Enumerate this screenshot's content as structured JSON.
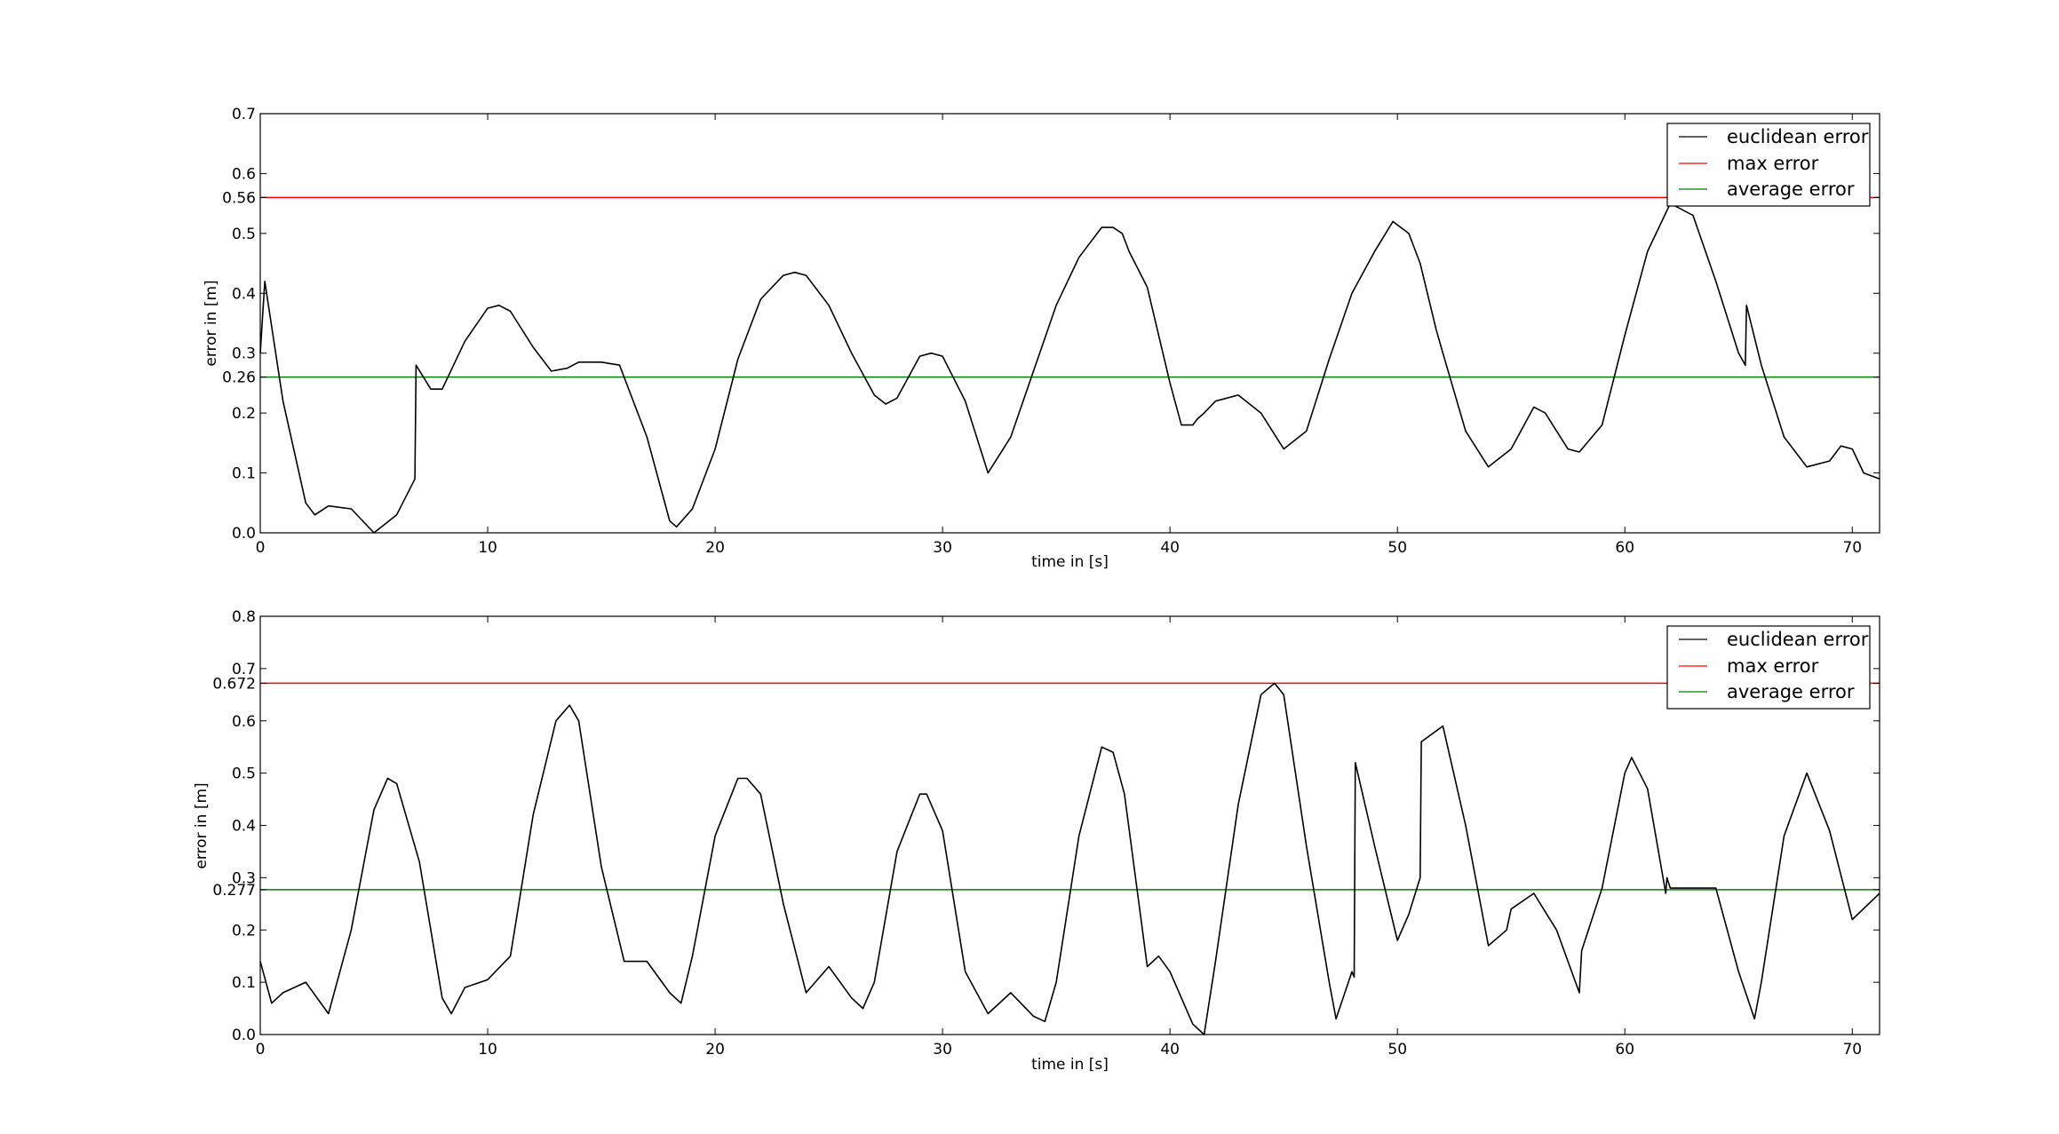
{
  "chart_data": [
    {
      "type": "line",
      "xlabel": "time in [s]",
      "ylabel": "error in [m]",
      "xlim": [
        0,
        71.2
      ],
      "ylim": [
        0,
        0.7
      ],
      "xticks": [
        0,
        10,
        20,
        30,
        40,
        50,
        60,
        70
      ],
      "yticks": [
        "0.0",
        "0.1",
        "0.2",
        "0.26",
        "0.3",
        "0.4",
        "0.5",
        "0.56",
        "0.6",
        "0.7"
      ],
      "grid": false,
      "legend_position": "top-right",
      "legend": [
        "euclidean error",
        "max error",
        "average error"
      ],
      "colors": {
        "euclidean": "#000000",
        "max": "#ff0000",
        "average": "#008000"
      },
      "max_error": 0.56,
      "average_error": 0.26,
      "series": [
        {
          "name": "euclidean error",
          "x": [
            0,
            0.2,
            1,
            2,
            2.4,
            3,
            4,
            5,
            6,
            6.8,
            6.85,
            7.5,
            8,
            9,
            10,
            10.5,
            11,
            12,
            12.8,
            13.5,
            14,
            15,
            15.8,
            17,
            18,
            18.3,
            19,
            20,
            21,
            22,
            23,
            23.5,
            24,
            25,
            26,
            27,
            27.5,
            28,
            28.5,
            29,
            29.5,
            30,
            31,
            32,
            33,
            34,
            35,
            36,
            37,
            37.5,
            37.9,
            38.2,
            39,
            40,
            40.5,
            41,
            41.2,
            41.5,
            42,
            43,
            44,
            45,
            46,
            47,
            48,
            49,
            49.8,
            50.5,
            51,
            51.7,
            52,
            53,
            54,
            55,
            56,
            56.5,
            57,
            57.5,
            58,
            59,
            60,
            61,
            62,
            63,
            64,
            65,
            65.3,
            65.35,
            66,
            67,
            68,
            69,
            69.5,
            70,
            70.5,
            71.2
          ],
          "values": [
            0.3,
            0.42,
            0.22,
            0.05,
            0.03,
            0.045,
            0.04,
            0.0,
            0.03,
            0.09,
            0.28,
            0.24,
            0.24,
            0.32,
            0.375,
            0.38,
            0.37,
            0.31,
            0.27,
            0.275,
            0.285,
            0.285,
            0.28,
            0.16,
            0.02,
            0.01,
            0.04,
            0.14,
            0.29,
            0.39,
            0.43,
            0.435,
            0.43,
            0.38,
            0.3,
            0.23,
            0.215,
            0.225,
            0.26,
            0.295,
            0.3,
            0.295,
            0.22,
            0.1,
            0.16,
            0.27,
            0.38,
            0.46,
            0.51,
            0.51,
            0.5,
            0.47,
            0.41,
            0.25,
            0.18,
            0.18,
            0.19,
            0.2,
            0.22,
            0.23,
            0.2,
            0.14,
            0.17,
            0.29,
            0.4,
            0.47,
            0.52,
            0.5,
            0.45,
            0.34,
            0.3,
            0.17,
            0.11,
            0.14,
            0.21,
            0.2,
            0.17,
            0.14,
            0.135,
            0.18,
            0.33,
            0.47,
            0.55,
            0.53,
            0.42,
            0.3,
            0.28,
            0.38,
            0.28,
            0.16,
            0.11,
            0.12,
            0.145,
            0.14,
            0.1,
            0.09
          ]
        }
      ]
    },
    {
      "type": "line",
      "xlabel": "time in [s]",
      "ylabel": "error in [m]",
      "xlim": [
        0,
        71.2
      ],
      "ylim": [
        0,
        0.8
      ],
      "xticks": [
        0,
        10,
        20,
        30,
        40,
        50,
        60,
        70
      ],
      "yticks": [
        "0.0",
        "0.1",
        "0.2",
        "0.277",
        "0.3",
        "0.4",
        "0.5",
        "0.6",
        "0.672",
        "0.7",
        "0.8"
      ],
      "grid": false,
      "legend_position": "top-right",
      "legend": [
        "euclidean error",
        "max error",
        "average error"
      ],
      "colors": {
        "euclidean": "#000000",
        "max": "#ff0000",
        "average": "#008000"
      },
      "max_error": 0.672,
      "average_error": 0.277,
      "series": [
        {
          "name": "euclidean error",
          "x": [
            0,
            0.5,
            1,
            2,
            3,
            4,
            5,
            5.6,
            6,
            7,
            8,
            8.4,
            9,
            10,
            11,
            12,
            13,
            13.6,
            14,
            15,
            16,
            17,
            18,
            18.5,
            19,
            20,
            21,
            21.4,
            22,
            23,
            24,
            25,
            26,
            26.5,
            27,
            28,
            29,
            29.3,
            30,
            31,
            32,
            33,
            34,
            34.5,
            35,
            36,
            37,
            37.5,
            38,
            39,
            39.5,
            40,
            41,
            41.5,
            42,
            43,
            44,
            44.6,
            45,
            46,
            47,
            47.3,
            48,
            48.1,
            48.15,
            49,
            50,
            50.5,
            51,
            51.05,
            52,
            53,
            54,
            54.8,
            55,
            56,
            57,
            58,
            58.1,
            59,
            60,
            60.3,
            61,
            61.8,
            61.85,
            62,
            63,
            64,
            65,
            65.7,
            66,
            67,
            68,
            69,
            70,
            71.2
          ],
          "values": [
            0.14,
            0.06,
            0.08,
            0.1,
            0.04,
            0.2,
            0.43,
            0.49,
            0.48,
            0.33,
            0.07,
            0.04,
            0.09,
            0.105,
            0.15,
            0.42,
            0.6,
            0.63,
            0.6,
            0.32,
            0.14,
            0.14,
            0.08,
            0.06,
            0.15,
            0.38,
            0.49,
            0.49,
            0.46,
            0.25,
            0.08,
            0.13,
            0.07,
            0.05,
            0.1,
            0.35,
            0.46,
            0.46,
            0.39,
            0.12,
            0.04,
            0.08,
            0.035,
            0.025,
            0.1,
            0.38,
            0.55,
            0.54,
            0.46,
            0.13,
            0.15,
            0.12,
            0.02,
            0.0,
            0.14,
            0.44,
            0.65,
            0.672,
            0.65,
            0.36,
            0.1,
            0.03,
            0.12,
            0.11,
            0.52,
            0.36,
            0.18,
            0.23,
            0.3,
            0.56,
            0.59,
            0.4,
            0.17,
            0.2,
            0.24,
            0.27,
            0.2,
            0.08,
            0.16,
            0.28,
            0.5,
            0.53,
            0.47,
            0.27,
            0.3,
            0.28,
            0.28,
            0.28,
            0.12,
            0.03,
            0.1,
            0.38,
            0.5,
            0.39,
            0.22,
            0.27
          ]
        }
      ]
    }
  ]
}
